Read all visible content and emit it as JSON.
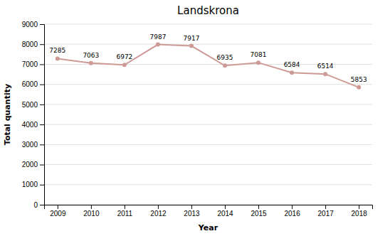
{
  "chart_data": {
    "type": "line",
    "title": "Landskrona",
    "xlabel": "Year",
    "ylabel": "Total quantity",
    "x": [
      2009,
      2010,
      2011,
      2012,
      2013,
      2014,
      2015,
      2016,
      2017,
      2018
    ],
    "values": [
      7285,
      7063,
      6972,
      7987,
      7917,
      6935,
      7081,
      6584,
      6514,
      5853
    ],
    "color": "#cd9a96",
    "marker": "circle",
    "xlim": [
      2008.6,
      2018.4
    ],
    "xticks": [
      2009,
      2010,
      2011,
      2012,
      2013,
      2014,
      2015,
      2016,
      2017,
      2018
    ],
    "ylim": [
      0,
      9000
    ],
    "yticks": [
      0,
      1000,
      2000,
      3000,
      4000,
      5000,
      6000,
      7000,
      8000,
      9000
    ],
    "grid": "y",
    "data_labels": true
  }
}
